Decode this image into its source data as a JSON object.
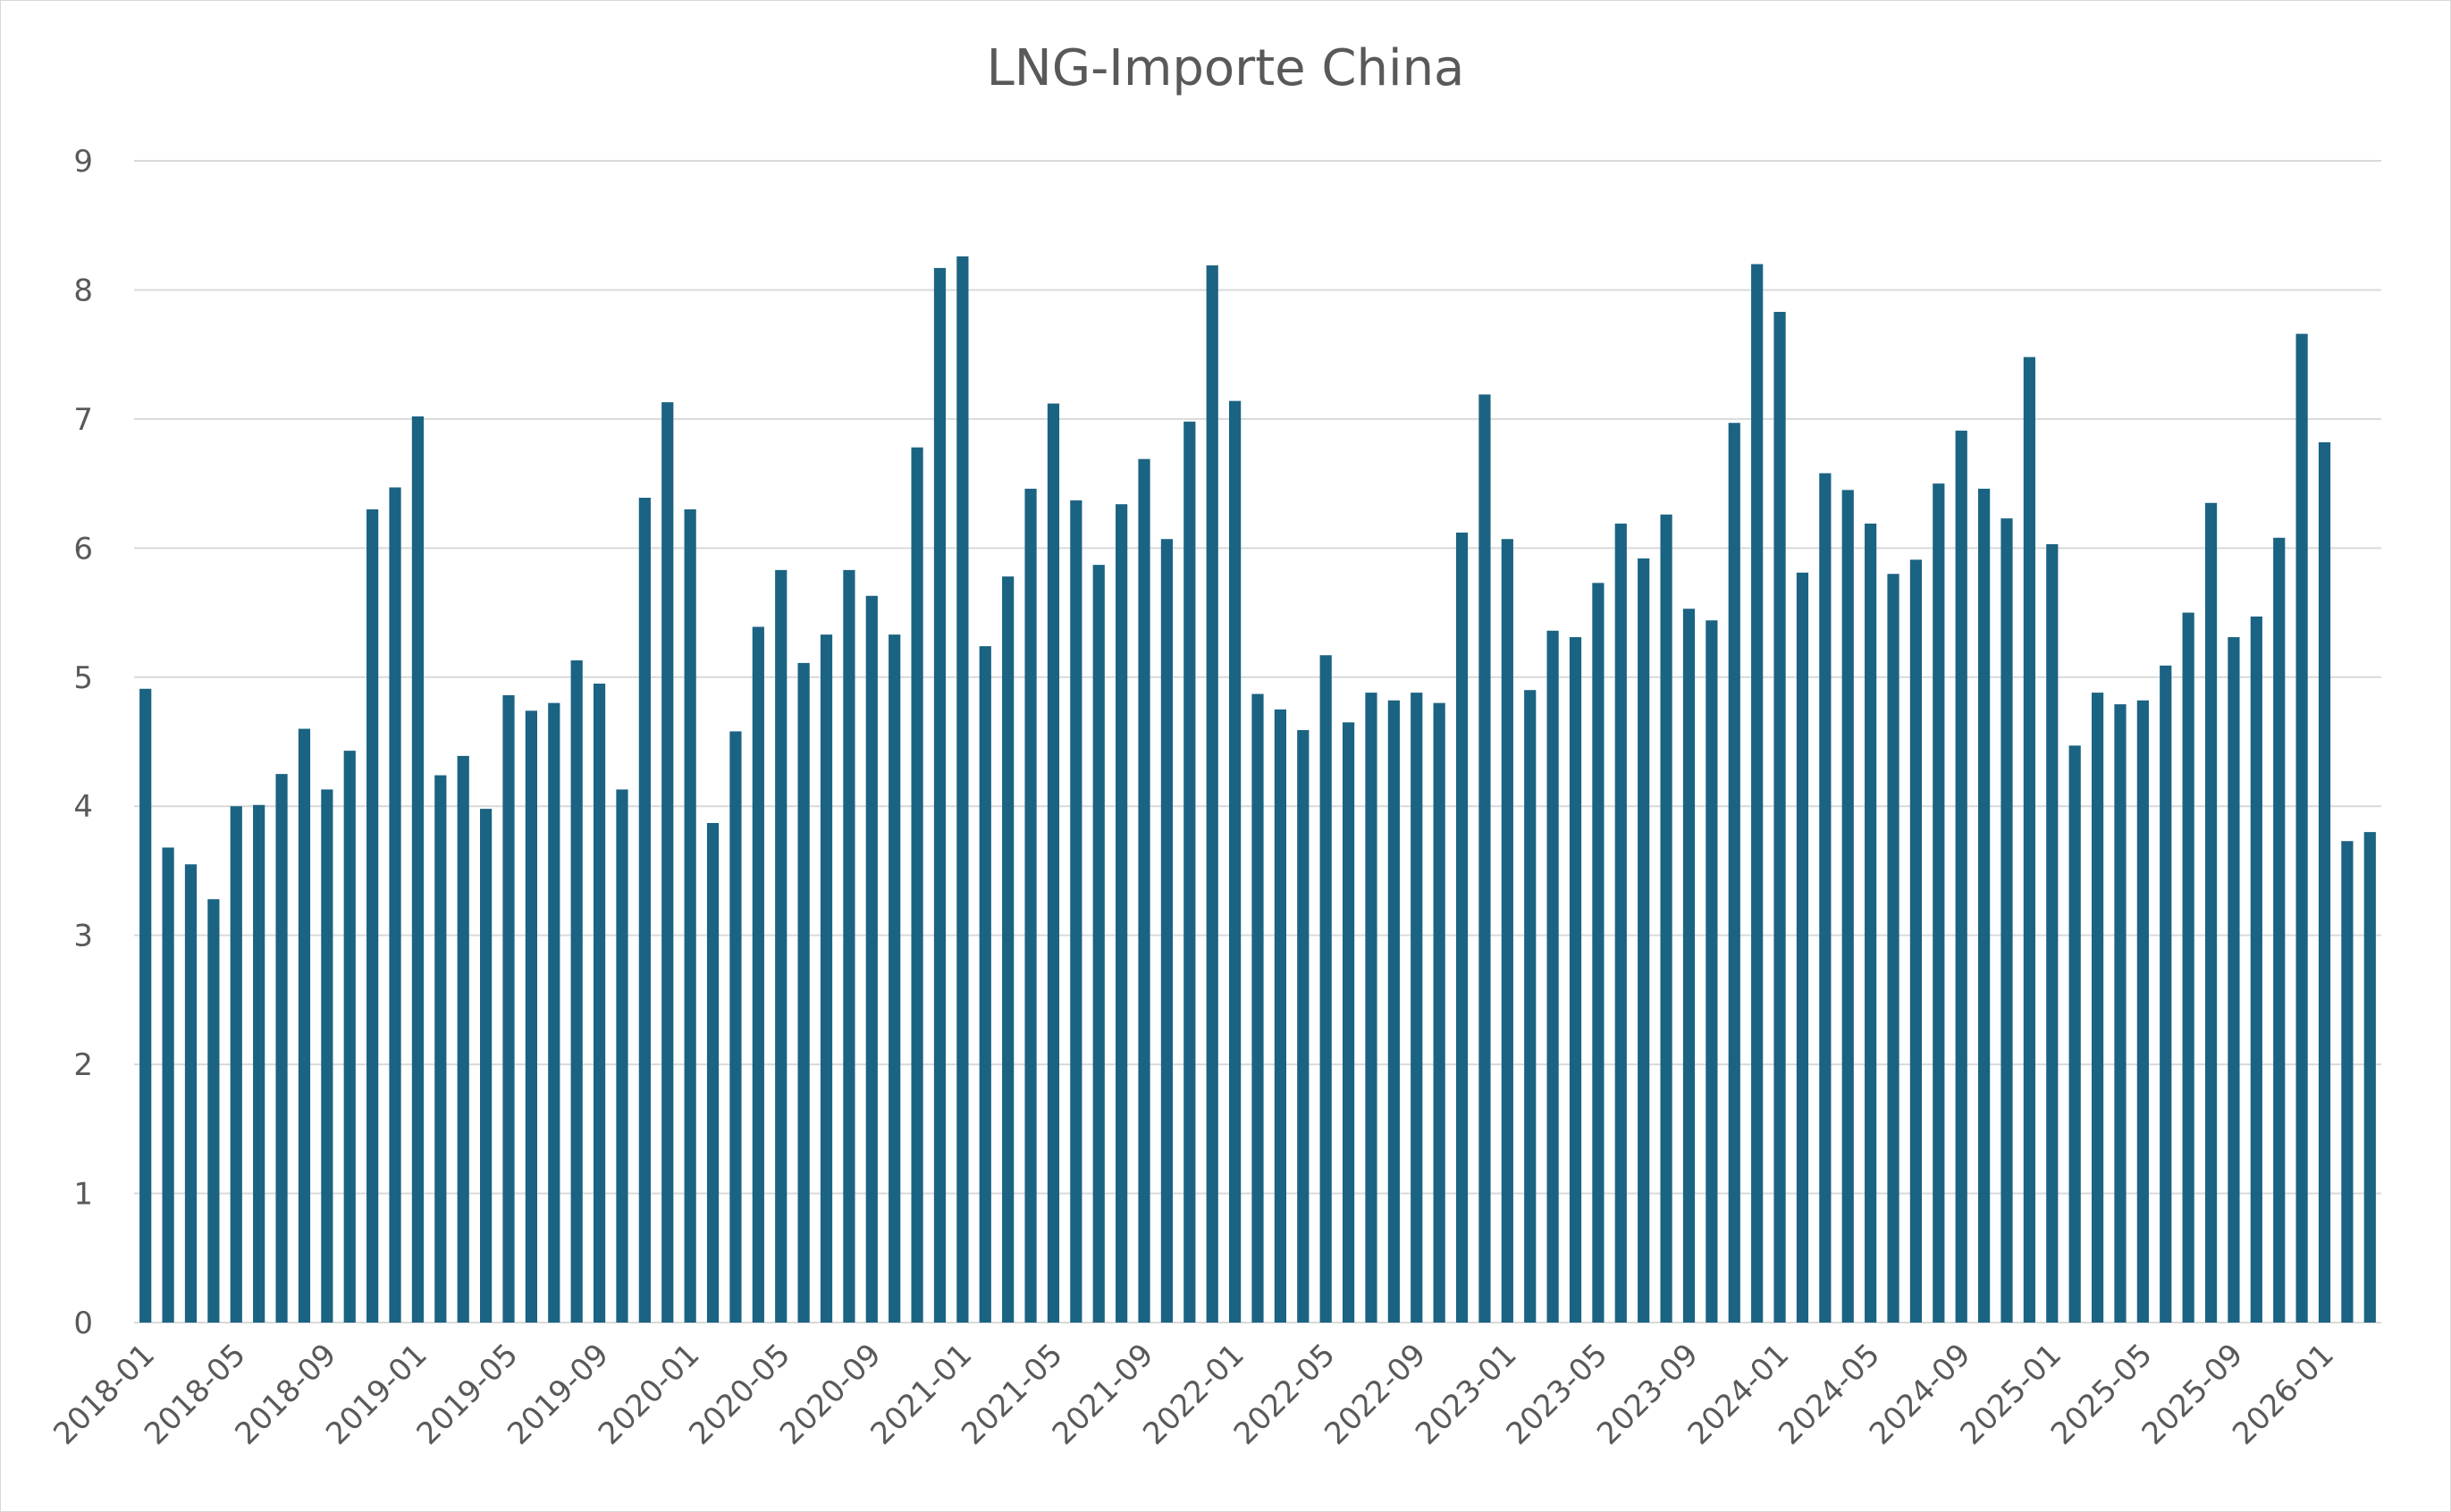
{
  "chart_data": {
    "type": "bar",
    "title": "LNG-Importe China",
    "xlabel": "",
    "ylabel": "",
    "ylim": [
      0,
      9
    ],
    "yticks": [
      0,
      1,
      2,
      3,
      4,
      5,
      6,
      7,
      8,
      9
    ],
    "grid": true,
    "legend": "none",
    "bar_color": "#1b6382",
    "x_tick_labels": [
      "2018-01",
      "2018-05",
      "2018-09",
      "2019-01",
      "2019-05",
      "2019-09",
      "2020-01",
      "2020-05",
      "2020-09",
      "2021-01",
      "2021-05",
      "2021-09",
      "2022-01",
      "2022-05",
      "2022-09",
      "2023-01",
      "2023-05",
      "2023-09",
      "2024-01",
      "2024-05",
      "2024-09",
      "2025-01",
      "2025-05",
      "2025-09",
      "2026-01"
    ],
    "categories": [
      "2018-01",
      "2018-02",
      "2018-03",
      "2018-04",
      "2018-05",
      "2018-06",
      "2018-07",
      "2018-08",
      "2018-09",
      "2018-10",
      "2018-11",
      "2018-12",
      "2019-01",
      "2019-02",
      "2019-03",
      "2019-04",
      "2019-05",
      "2019-06",
      "2019-07",
      "2019-08",
      "2019-09",
      "2019-10",
      "2019-11",
      "2019-12",
      "2020-01",
      "2020-02",
      "2020-03",
      "2020-04",
      "2020-05",
      "2020-06",
      "2020-07",
      "2020-08",
      "2020-09",
      "2020-10",
      "2020-11",
      "2020-12",
      "2021-01",
      "2021-02",
      "2021-03",
      "2021-04",
      "2021-05",
      "2021-06",
      "2021-07",
      "2021-08",
      "2021-09",
      "2021-10",
      "2021-11",
      "2021-12",
      "2022-01",
      "2022-02",
      "2022-03",
      "2022-04",
      "2022-05",
      "2022-06",
      "2022-07",
      "2022-08",
      "2022-09",
      "2022-10",
      "2022-11",
      "2022-12",
      "2023-01",
      "2023-02",
      "2023-03",
      "2023-04",
      "2023-05",
      "2023-06",
      "2023-07",
      "2023-08",
      "2023-09",
      "2023-10",
      "2023-11",
      "2023-12",
      "2024-01",
      "2024-02",
      "2024-03",
      "2024-04",
      "2024-05",
      "2024-06",
      "2024-07",
      "2024-08",
      "2024-09",
      "2024-10",
      "2024-11",
      "2024-12",
      "2025-01",
      "2025-02",
      "2025-03",
      "2025-04",
      "2025-05",
      "2025-06",
      "2025-07",
      "2025-08",
      "2025-09",
      "2025-10",
      "2025-11",
      "2025-12",
      "2026-01",
      "2026-02",
      "2026-03"
    ],
    "values": [
      4.91,
      3.68,
      3.55,
      3.28,
      4.0,
      4.01,
      4.25,
      4.6,
      4.13,
      4.43,
      6.3,
      6.47,
      7.02,
      4.24,
      4.39,
      3.98,
      4.86,
      4.74,
      4.8,
      5.13,
      4.95,
      4.13,
      6.39,
      7.13,
      6.3,
      3.87,
      4.58,
      5.39,
      5.83,
      5.11,
      5.33,
      5.83,
      5.63,
      5.33,
      6.78,
      8.17,
      8.26,
      5.24,
      5.78,
      6.46,
      7.12,
      6.37,
      5.87,
      6.34,
      6.69,
      6.07,
      6.98,
      8.19,
      7.14,
      4.87,
      4.75,
      4.59,
      5.17,
      4.65,
      4.88,
      4.82,
      4.88,
      4.8,
      6.12,
      7.19,
      6.07,
      4.9,
      5.36,
      5.31,
      5.73,
      6.19,
      5.92,
      6.26,
      5.53,
      5.44,
      6.97,
      8.2,
      7.83,
      5.81,
      6.58,
      6.45,
      6.19,
      5.8,
      5.91,
      6.5,
      6.91,
      6.46,
      6.23,
      7.48,
      6.03,
      4.47,
      4.88,
      4.79,
      4.82,
      5.09,
      5.5,
      6.35,
      5.31,
      5.47,
      6.08,
      7.66,
      6.82,
      3.73,
      3.8
    ]
  }
}
